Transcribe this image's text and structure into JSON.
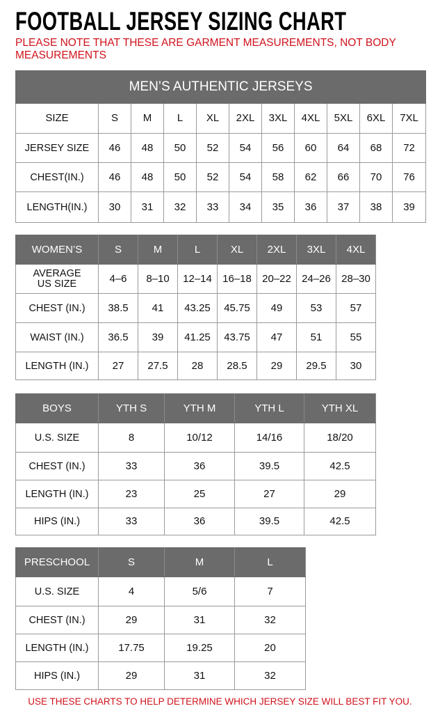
{
  "title": "FOOTBALL JERSEY SIZING CHART",
  "note": "PLEASE NOTE THAT THESE ARE GARMENT MEASUREMENTS, NOT BODY MEASUREMENTS",
  "footer": "USE THESE CHARTS TO HELP DETERMINE WHICH JERSEY SIZE WILL BEST FIT YOU.",
  "colors": {
    "header_bg": "#6b6b6b",
    "note_red": "#d0121b"
  },
  "tables": [
    {
      "id": "mens",
      "caption": "MEN’S AUTHENTIC JERSEYS",
      "header": [
        "SIZE",
        "S",
        "M",
        "L",
        "XL",
        "2XL",
        "3XL",
        "4XL",
        "5XL",
        "6XL",
        "7XL"
      ],
      "header_is_dark": false,
      "rows": [
        [
          "JERSEY SIZE",
          "46",
          "48",
          "50",
          "52",
          "54",
          "56",
          "60",
          "64",
          "68",
          "72"
        ],
        [
          "CHEST(IN.)",
          "46",
          "48",
          "50",
          "52",
          "54",
          "58",
          "62",
          "66",
          "70",
          "76"
        ],
        [
          "LENGTH(IN.)",
          "30",
          "31",
          "32",
          "33",
          "34",
          "35",
          "36",
          "37",
          "38",
          "39"
        ]
      ]
    },
    {
      "id": "womens",
      "header": [
        "WOMEN’S",
        "S",
        "M",
        "L",
        "XL",
        "2XL",
        "3XL",
        "4XL"
      ],
      "header_is_dark": true,
      "rows": [
        [
          "AVERAGE US SIZE",
          "4–6",
          "8–10",
          "12–14",
          "16–18",
          "20–22",
          "24–26",
          "28–30"
        ],
        [
          "CHEST (IN.)",
          "38.5",
          "41",
          "43.25",
          "45.75",
          "49",
          "53",
          "57"
        ],
        [
          "WAIST (IN.)",
          "36.5",
          "39",
          "41.25",
          "43.75",
          "47",
          "51",
          "55"
        ],
        [
          "LENGTH (IN.)",
          "27",
          "27.5",
          "28",
          "28.5",
          "29",
          "29.5",
          "30"
        ]
      ]
    },
    {
      "id": "boys",
      "header": [
        "BOYS",
        "YTH S",
        "YTH M",
        "YTH L",
        "YTH XL"
      ],
      "header_is_dark": true,
      "rows": [
        [
          "U.S. SIZE",
          "8",
          "10/12",
          "14/16",
          "18/20"
        ],
        [
          "CHEST (IN.)",
          "33",
          "36",
          "39.5",
          "42.5"
        ],
        [
          "LENGTH (IN.)",
          "23",
          "25",
          "27",
          "29"
        ],
        [
          "HIPS (IN.)",
          "33",
          "36",
          "39.5",
          "42.5"
        ]
      ]
    },
    {
      "id": "preschool",
      "header": [
        "PRESCHOOL",
        "S",
        "M",
        "L"
      ],
      "header_is_dark": true,
      "rows": [
        [
          "U.S. SIZE",
          "4",
          "5/6",
          "7"
        ],
        [
          "CHEST (IN.)",
          "29",
          "31",
          "32"
        ],
        [
          "LENGTH (IN.)",
          "17.75",
          "19.25",
          "20"
        ],
        [
          "HIPS (IN.)",
          "29",
          "31",
          "32"
        ]
      ]
    }
  ]
}
